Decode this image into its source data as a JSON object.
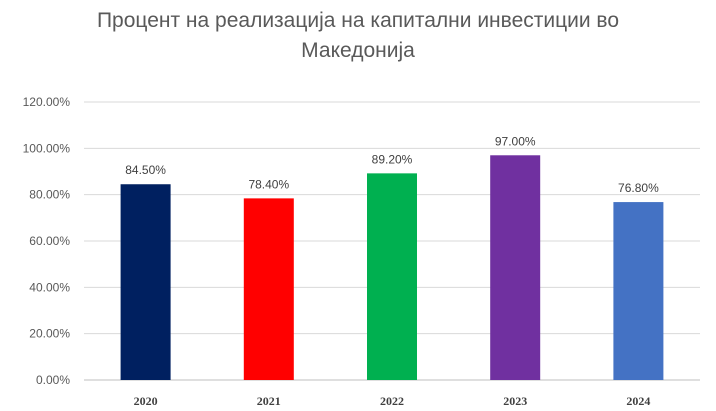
{
  "chart_data": {
    "type": "bar",
    "title_lines": [
      "Процент на реализација на капитални инвестиции во",
      "Македонија"
    ],
    "xlabel": "",
    "ylabel": "",
    "categories": [
      "2020",
      "2021",
      "2022",
      "2023",
      "2024"
    ],
    "values": [
      84.5,
      78.4,
      89.2,
      97.0,
      76.8
    ],
    "data_labels": [
      "84.50%",
      "78.40%",
      "89.20%",
      "97.00%",
      "76.80%"
    ],
    "colors": [
      "#002060",
      "#ff0000",
      "#00b050",
      "#7030a0",
      "#4472c4"
    ],
    "ylim": [
      0,
      120
    ],
    "y_ticks": [
      0,
      20,
      40,
      60,
      80,
      100,
      120
    ],
    "y_tick_labels": [
      "0.00%",
      "20.00%",
      "40.00%",
      "60.00%",
      "80.00%",
      "100.00%",
      "120.00%"
    ],
    "grid": true,
    "legend": "none"
  }
}
